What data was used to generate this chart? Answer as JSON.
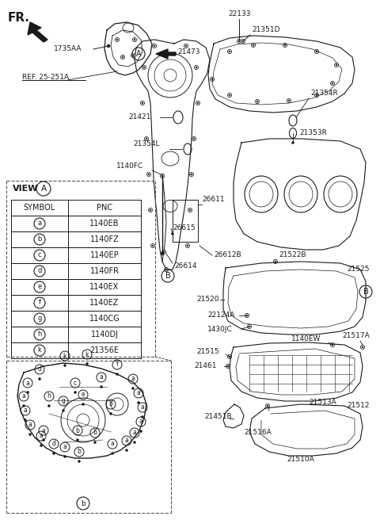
{
  "bg_color": "#ffffff",
  "line_color": "#1a1a1a",
  "fig_width": 4.8,
  "fig_height": 6.56,
  "fr_label": "FR.",
  "ref_label": "REF. 25-251A",
  "view_a_label": "VIEW",
  "table_headers": [
    "SYMBOL",
    "PNC"
  ],
  "table_rows": [
    [
      "a",
      "1140EB"
    ],
    [
      "b",
      "1140FZ"
    ],
    [
      "c",
      "1140EP"
    ],
    [
      "d",
      "1140FR"
    ],
    [
      "e",
      "1140EX"
    ],
    [
      "f",
      "1140EZ"
    ],
    [
      "g",
      "1140CG"
    ],
    [
      "h",
      "1140DJ"
    ],
    [
      "k",
      "21356E"
    ]
  ]
}
